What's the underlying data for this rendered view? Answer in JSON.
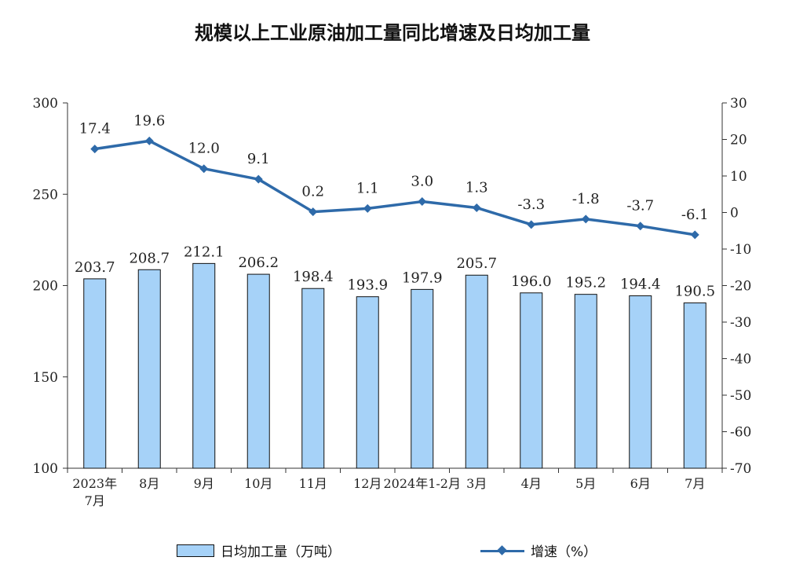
{
  "chart_data": {
    "type": "bar+line",
    "title": "规模以上工业原油加工量同比增速及日均加工量",
    "categories": [
      "2023年\n7月",
      "8月",
      "9月",
      "10月",
      "11月",
      "12月",
      "2024年1-2月",
      "3月",
      "4月",
      "5月",
      "6月",
      "7月"
    ],
    "series": [
      {
        "name": "日均加工量（万吨）",
        "type": "bar",
        "axis": "left",
        "values": [
          203.7,
          208.7,
          212.1,
          206.2,
          198.4,
          193.9,
          197.9,
          205.7,
          196.0,
          195.2,
          194.4,
          190.5
        ]
      },
      {
        "name": "增速（%）",
        "type": "line",
        "axis": "right",
        "values": [
          17.4,
          19.6,
          12.0,
          9.1,
          0.2,
          1.1,
          3.0,
          1.3,
          -3.3,
          -1.8,
          -3.7,
          -6.1
        ]
      }
    ],
    "left_axis": {
      "min": 100,
      "max": 300,
      "ticks": [
        100,
        150,
        200,
        250,
        300
      ]
    },
    "right_axis": {
      "min": -70,
      "max": 30,
      "ticks": [
        30,
        20,
        10,
        0,
        -10,
        -20,
        -30,
        -40,
        -50,
        -60,
        -70
      ]
    },
    "grid": false,
    "legend_position": "bottom",
    "colors": {
      "bar_fill": "#a6d2f8",
      "bar_stroke": "#111111",
      "line": "#2e6aa9"
    }
  }
}
